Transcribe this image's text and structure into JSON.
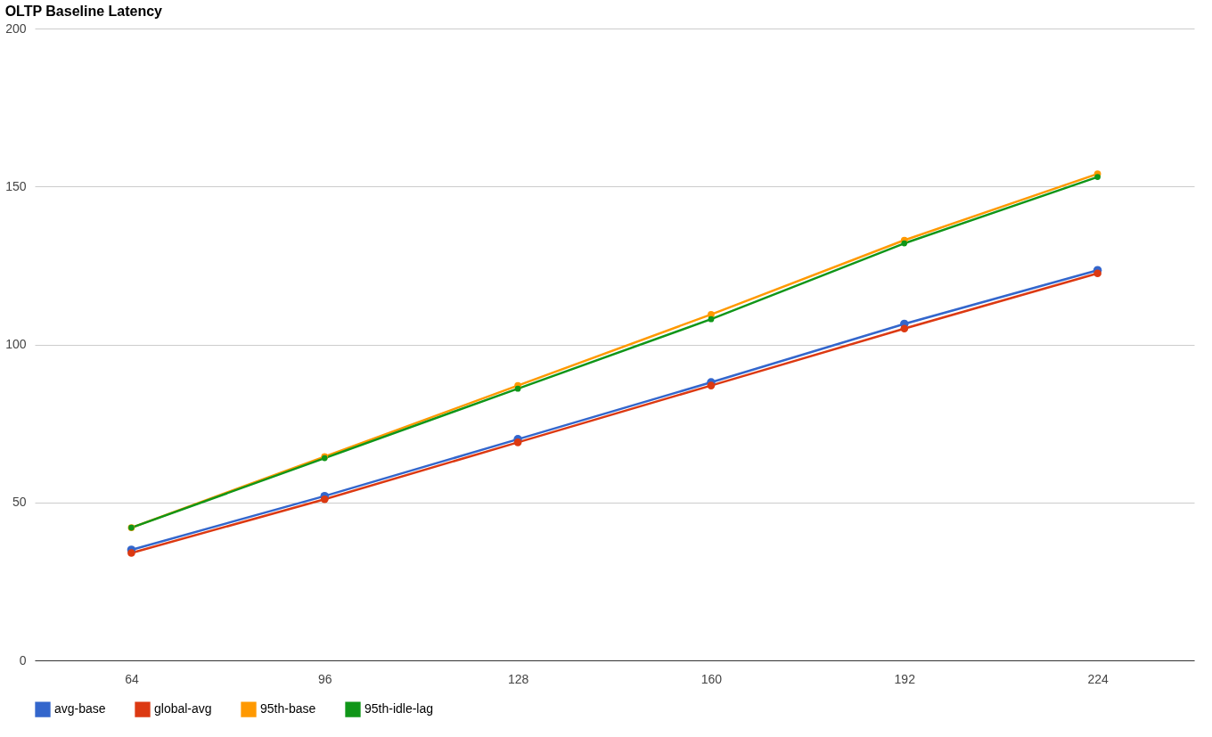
{
  "chart_data": {
    "type": "line",
    "title": "OLTP Baseline Latency",
    "categories": [
      "64",
      "96",
      "128",
      "160",
      "192",
      "224"
    ],
    "series": [
      {
        "name": "avg-base",
        "color": "#3366cc",
        "values": [
          35,
          52,
          70,
          88,
          106.5,
          123.5
        ]
      },
      {
        "name": "global-avg",
        "color": "#dc3912",
        "values": [
          34,
          51,
          69,
          87,
          105,
          122.5
        ]
      },
      {
        "name": "95th-base",
        "color": "#ff9900",
        "values": [
          42,
          64.5,
          87,
          109.5,
          133,
          154
        ]
      },
      {
        "name": "95th-idle-lag",
        "color": "#109618",
        "values": [
          42,
          64,
          86,
          108,
          132,
          153
        ]
      }
    ],
    "ylim": [
      0,
      200
    ],
    "yticks": [
      0,
      50,
      100,
      150,
      200
    ],
    "grid": "y",
    "legend": "bottom",
    "marker": "circle",
    "line_style": "solid"
  }
}
